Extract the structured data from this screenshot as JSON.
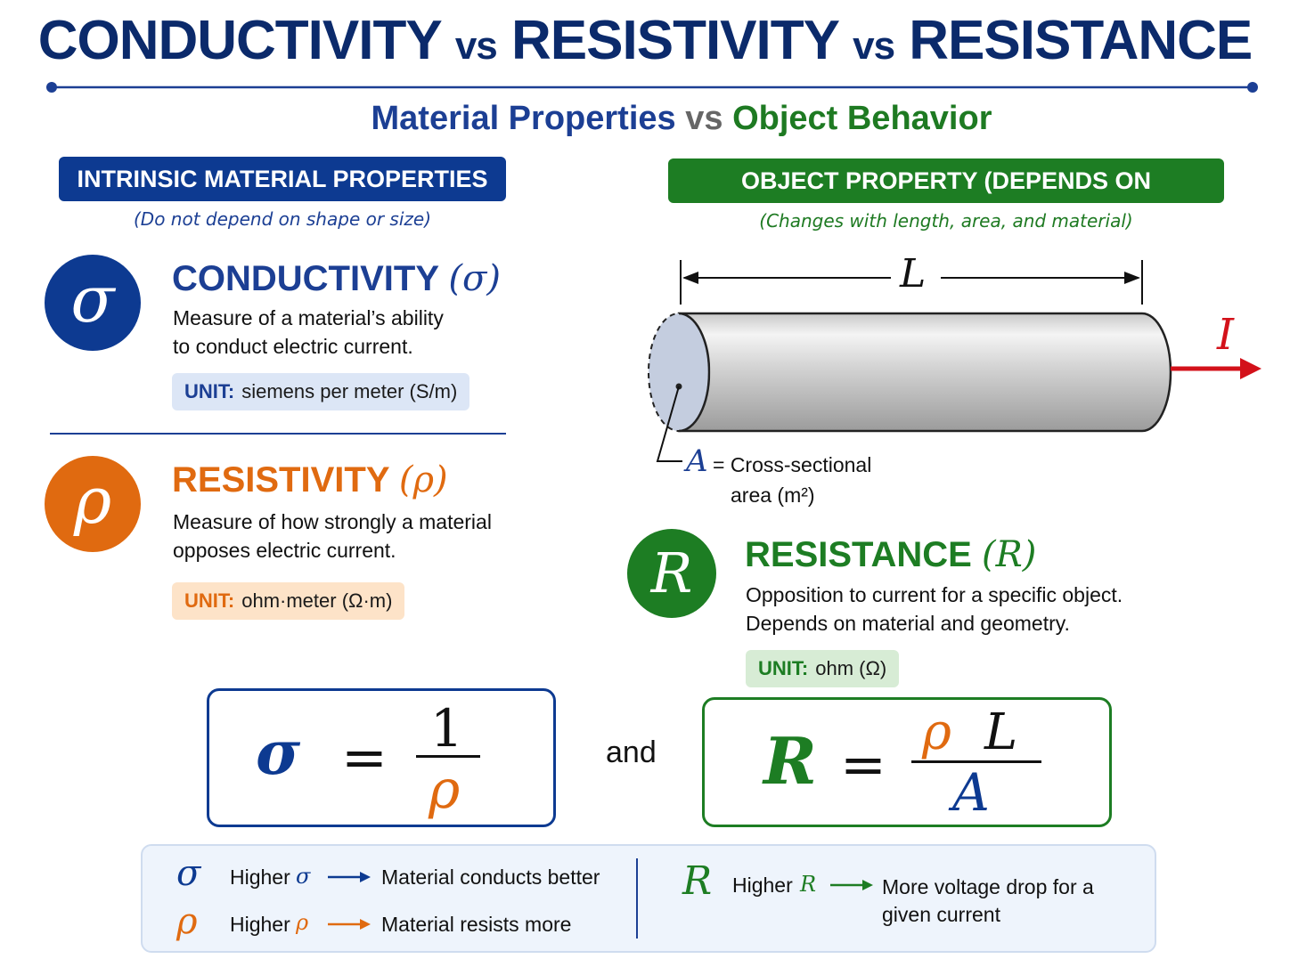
{
  "title": {
    "part1": "CONDUCTIVITY",
    "vs1": "vs",
    "part2": "RESISTIVITY",
    "vs2": "vs",
    "part3": "RESISTANCE"
  },
  "subtitle": {
    "left": "Material Properties",
    "vs": "vs",
    "right": "Object Behavior"
  },
  "left_panel": {
    "header": "INTRINSIC MATERIAL PROPERTIES",
    "note": "(Do not depend on shape or size)",
    "conductivity": {
      "symbol": "σ",
      "name": "CONDUCTIVITY",
      "name_symbol": "(σ)",
      "desc_line1": "Measure of a material’s ability",
      "desc_line2": "to conduct electric current.",
      "unit_label": "UNIT:",
      "unit_value": "siemens per meter (S/m)"
    },
    "resistivity": {
      "symbol": "ρ",
      "name": "RESISTIVITY",
      "name_symbol": "(ρ)",
      "desc_line1": "Measure of how strongly a material",
      "desc_line2": "opposes electric current.",
      "unit_label": "UNIT:",
      "unit_value": "ohm·meter (Ω·m)"
    }
  },
  "right_panel": {
    "header": "OBJECT PROPERTY (DEPENDS ON GEOMETRY)",
    "note": "(Changes with length, area, and material)",
    "diagram": {
      "length_label": "L",
      "current_label": "I",
      "area_symbol": "A",
      "area_text_line1": "= Cross-sectional",
      "area_text_line2": "area (m²)"
    },
    "resistance": {
      "symbol": "R",
      "name": "RESISTANCE",
      "name_symbol": "(R)",
      "desc_line1": "Opposition to current for a specific object.",
      "desc_line2": "Depends on material and geometry.",
      "unit_label": "UNIT:",
      "unit_value": "ohm (Ω)"
    }
  },
  "formulas": {
    "f1": {
      "lhs": "σ",
      "eq": "=",
      "num": "1",
      "den": "ρ"
    },
    "and": "and",
    "f2": {
      "lhs": "R",
      "eq": "=",
      "num_rho": "ρ",
      "num_l": "L",
      "den": "A"
    }
  },
  "summary": {
    "row1": {
      "symbol": "σ",
      "higher": "Higher",
      "var": "σ",
      "result": "Material conducts better"
    },
    "row2": {
      "symbol": "ρ",
      "higher": "Higher",
      "var": "ρ",
      "result": "Material resists more"
    },
    "row3": {
      "symbol": "R",
      "higher": "Higher",
      "var": "R",
      "result_line1": "More voltage drop for a",
      "result_line2": "given current"
    }
  },
  "colors": {
    "navy": "#0b2a6b",
    "blue": "#0d3a91",
    "orange": "#e06a10",
    "green": "#1d7d23",
    "red": "#d3111a"
  }
}
